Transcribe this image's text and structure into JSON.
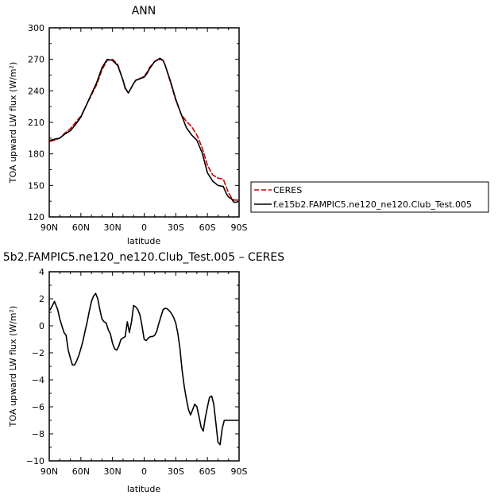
{
  "chart_data": [
    {
      "type": "line",
      "title": "ANN",
      "xlabel": "latitude",
      "ylabel": "TOA upward LW flux (W/m²)",
      "xlim": [
        90,
        -90
      ],
      "ylim": [
        120,
        300
      ],
      "xticks": [
        90,
        60,
        30,
        0,
        -30,
        -60,
        -90
      ],
      "xtick_labels": [
        "90N",
        "60N",
        "30N",
        "0",
        "30S",
        "60S",
        "90S"
      ],
      "yticks": [
        120,
        150,
        180,
        210,
        240,
        270,
        300
      ],
      "ytick_labels": [
        "120",
        "150",
        "180",
        "210",
        "240",
        "270",
        "300"
      ],
      "legend_position": "right",
      "series": [
        {
          "name": "CERES",
          "color": "#cc0000",
          "dash": "dashed",
          "x": [
            89,
            85,
            80,
            75,
            70,
            65,
            60,
            55,
            50,
            45,
            40,
            35,
            30,
            25,
            20,
            18,
            15,
            10,
            8,
            5,
            3,
            0,
            -3,
            -5,
            -10,
            -15,
            -18,
            -20,
            -25,
            -30,
            -35,
            -40,
            -45,
            -50,
            -55,
            -60,
            -65,
            -70,
            -75,
            -78,
            -80,
            -83,
            -85,
            -88,
            -89
          ],
          "y": [
            192,
            193,
            195,
            200,
            204,
            210,
            216,
            226,
            236,
            246,
            260,
            269,
            270,
            265,
            250,
            242,
            238,
            247,
            250,
            252,
            252,
            254,
            258,
            262,
            268,
            270,
            269,
            264,
            248,
            231,
            218,
            211,
            206,
            198,
            186,
            169,
            160,
            157,
            156,
            148,
            143,
            138,
            136,
            136,
            137
          ]
        },
        {
          "name": "f.e15b2.FAMPIC5.ne120_ne120.Club_Test.005",
          "color": "#000000",
          "dash": "solid",
          "x": [
            89,
            85,
            80,
            75,
            70,
            65,
            60,
            55,
            50,
            45,
            40,
            35,
            30,
            25,
            20,
            18,
            15,
            10,
            8,
            5,
            3,
            0,
            -3,
            -5,
            -10,
            -15,
            -18,
            -20,
            -25,
            -30,
            -35,
            -40,
            -45,
            -50,
            -55,
            -60,
            -65,
            -70,
            -75,
            -78,
            -80,
            -83,
            -85,
            -88,
            -89
          ],
          "y": [
            193,
            194,
            195,
            199,
            202,
            208,
            215,
            226,
            237,
            248,
            262,
            270,
            269,
            264,
            250,
            243,
            238,
            247,
            250,
            251,
            252,
            253,
            257,
            261,
            268,
            271,
            269,
            264,
            249,
            232,
            218,
            205,
            198,
            193,
            181,
            162,
            154,
            150,
            149,
            142,
            139,
            137,
            134,
            134,
            135
          ]
        }
      ]
    },
    {
      "type": "line",
      "title": "5b2.FAMPIC5.ne120_ne120.Club_Test.005 – CERES",
      "xlabel": "latitude",
      "ylabel": "TOA upward LW flux (W/m²)",
      "xlim": [
        90,
        -90
      ],
      "ylim": [
        -10,
        4
      ],
      "xticks": [
        90,
        60,
        30,
        0,
        -30,
        -60,
        -90
      ],
      "xtick_labels": [
        "90N",
        "60N",
        "30N",
        "0",
        "30S",
        "60S",
        "90S"
      ],
      "yticks": [
        -10,
        -8,
        -6,
        -4,
        -2,
        0,
        2,
        4
      ],
      "ytick_labels": [
        "−10",
        "−8",
        "−6",
        "−4",
        "−2",
        "0",
        "2",
        "4"
      ],
      "series": [
        {
          "color": "#000000",
          "dash": "solid",
          "x": [
            89,
            87,
            85,
            82,
            80,
            78,
            76,
            74,
            72,
            70,
            68,
            66,
            64,
            62,
            60,
            58,
            56,
            54,
            52,
            50,
            48,
            46,
            44,
            42,
            40,
            38,
            36,
            34,
            32,
            30,
            28,
            26,
            24,
            22,
            20,
            18,
            16,
            14,
            12,
            10,
            8,
            6,
            4,
            2,
            0,
            -2,
            -4,
            -6,
            -8,
            -10,
            -12,
            -14,
            -16,
            -18,
            -20,
            -22,
            -24,
            -26,
            -28,
            -30,
            -32,
            -34,
            -36,
            -38,
            -40,
            -42,
            -44,
            -46,
            -48,
            -50,
            -52,
            -54,
            -56,
            -58,
            -60,
            -62,
            -64,
            -66,
            -68,
            -70,
            -72,
            -74,
            -76,
            -78,
            -80,
            -82,
            -84,
            -86,
            -88,
            -89
          ],
          "y": [
            1.2,
            1.5,
            1.8,
            1.2,
            0.5,
            0.0,
            -0.5,
            -0.7,
            -1.8,
            -2.4,
            -2.9,
            -2.9,
            -2.6,
            -2.2,
            -1.7,
            -1.1,
            -0.4,
            0.3,
            1.1,
            1.8,
            2.2,
            2.4,
            2.0,
            1.2,
            0.5,
            0.3,
            0.2,
            -0.3,
            -0.6,
            -1.3,
            -1.7,
            -1.8,
            -1.5,
            -1.0,
            -0.9,
            -0.8,
            0.3,
            -0.5,
            0.3,
            1.5,
            1.4,
            1.2,
            0.8,
            0.0,
            -1.0,
            -1.1,
            -0.9,
            -0.8,
            -0.8,
            -0.7,
            -0.4,
            0.2,
            0.7,
            1.2,
            1.3,
            1.25,
            1.1,
            0.9,
            0.6,
            0.2,
            -0.6,
            -1.7,
            -3.3,
            -4.5,
            -5.4,
            -6.2,
            -6.6,
            -6.2,
            -5.8,
            -6.0,
            -6.7,
            -7.5,
            -7.8,
            -6.8,
            -6.0,
            -5.3,
            -5.2,
            -5.8,
            -7.2,
            -8.6,
            -8.8,
            -7.6,
            -7.0,
            -7.0,
            -7.0,
            -7.0,
            -7.0,
            -7.0,
            -7.0,
            -7.0
          ]
        }
      ]
    }
  ]
}
